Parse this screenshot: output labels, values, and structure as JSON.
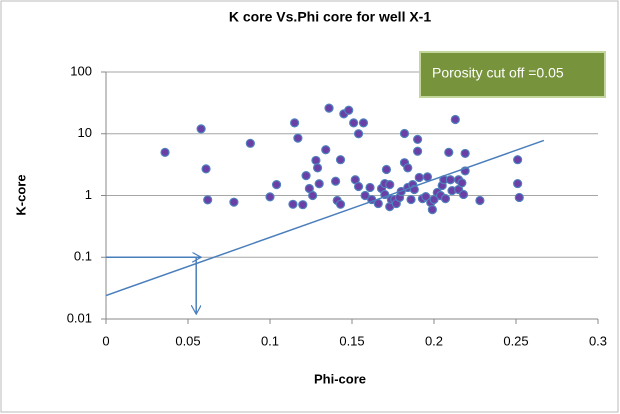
{
  "chart_data": {
    "type": "scatter",
    "title": "K core Vs.Phi core for well X-1",
    "x_label": "Phi-core",
    "y_label": "K-core",
    "annotation": "Porosity cut off =0.05",
    "log_y": true,
    "grid": true,
    "color": "#6a3fa6",
    "edge_color": "#4f81bd",
    "line_color": "#4a7ebb",
    "xlim": [
      0,
      0.3
    ],
    "xticks": [
      0,
      0.05,
      0.1,
      0.15,
      0.2,
      0.25,
      0.3
    ],
    "ylim": [
      0.01,
      100
    ],
    "yticks": [
      0.01,
      0.1,
      1,
      10,
      100
    ],
    "x": [
      0.036,
      0.058,
      0.061,
      0.062,
      0.078,
      0.088,
      0.1,
      0.104,
      0.114,
      0.115,
      0.117,
      0.12,
      0.122,
      0.124,
      0.126,
      0.128,
      0.129,
      0.13,
      0.134,
      0.136,
      0.14,
      0.141,
      0.143,
      0.143,
      0.145,
      0.148,
      0.151,
      0.152,
      0.154,
      0.154,
      0.157,
      0.158,
      0.161,
      0.162,
      0.166,
      0.168,
      0.17,
      0.17,
      0.171,
      0.173,
      0.173,
      0.174,
      0.176,
      0.177,
      0.179,
      0.18,
      0.182,
      0.182,
      0.184,
      0.184,
      0.186,
      0.187,
      0.188,
      0.19,
      0.19,
      0.191,
      0.193,
      0.195,
      0.196,
      0.198,
      0.199,
      0.2,
      0.202,
      0.204,
      0.205,
      0.206,
      0.207,
      0.209,
      0.21,
      0.211,
      0.213,
      0.215,
      0.215,
      0.217,
      0.218,
      0.219,
      0.219,
      0.228,
      0.251,
      0.251,
      0.252
    ],
    "values": [
      5,
      12,
      2.7,
      0.85,
      0.78,
      7,
      0.95,
      1.5,
      0.72,
      15,
      8.5,
      0.71,
      2.1,
      1.3,
      1.0,
      3.7,
      2.8,
      1.55,
      5.5,
      26,
      1.7,
      0.83,
      0.72,
      3.8,
      21,
      24,
      15,
      1.8,
      1.4,
      10,
      15,
      1.0,
      1.35,
      0.86,
      0.74,
      1.3,
      1.56,
      1.04,
      2.64,
      0.66,
      1.5,
      0.86,
      0.86,
      0.74,
      0.93,
      1.16,
      10.1,
      3.4,
      2.8,
      1.35,
      0.86,
      1.5,
      1.25,
      8.1,
      5.2,
      1.96,
      0.89,
      0.96,
      2.0,
      0.77,
      0.59,
      0.86,
      1.12,
      1.0,
      1.45,
      1.8,
      0.89,
      5.0,
      1.8,
      1.2,
      17,
      1.25,
      1.8,
      1.6,
      1.04,
      2.5,
      4.8,
      0.83,
      3.8,
      1.56,
      0.93
    ],
    "trendline": {
      "x": [
        0,
        0.267
      ],
      "y": [
        0.024,
        7.8
      ]
    },
    "arrows": [
      {
        "x": [
          0,
          0.058
        ],
        "y": [
          0.1,
          0.1
        ]
      },
      {
        "x": [
          0.055,
          0.055
        ],
        "y": [
          0.1,
          0.012
        ]
      }
    ]
  }
}
